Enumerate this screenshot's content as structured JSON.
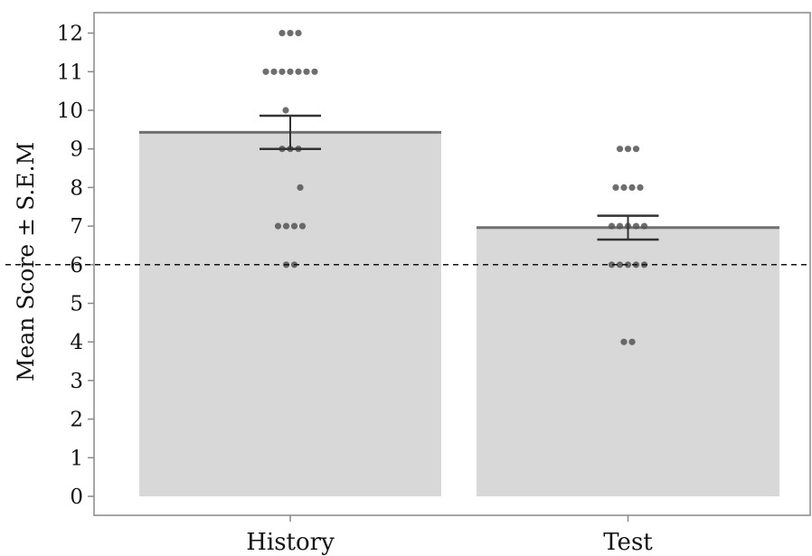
{
  "chart_data": {
    "type": "bar",
    "title": "",
    "xlabel": "",
    "ylabel": "Mean Score ± S.E.M",
    "categories": [
      "History",
      "Test"
    ],
    "values": [
      9.43,
      6.96
    ],
    "sem": [
      0.43,
      0.31
    ],
    "ylim": [
      0,
      12
    ],
    "yticks": [
      "0",
      "1",
      "2",
      "3",
      "4",
      "5",
      "6",
      "7",
      "8",
      "9",
      "10",
      "11",
      "12"
    ],
    "reference_line": 6,
    "grid": false,
    "legend": "none",
    "points": [
      [
        12,
        12,
        12,
        11,
        11,
        11,
        11,
        11,
        11,
        11,
        10,
        9,
        9,
        9,
        8,
        7,
        7,
        7,
        7,
        6,
        6
      ],
      [
        9,
        9,
        9,
        8,
        8,
        8,
        8,
        7,
        7,
        7,
        7,
        7,
        6,
        6,
        6,
        6,
        6,
        4,
        4
      ]
    ],
    "colors": {
      "bar": "#d8d8d8",
      "bar_top": "#707070",
      "point": "#555555",
      "axis": "#888888",
      "error": "#333333"
    }
  }
}
